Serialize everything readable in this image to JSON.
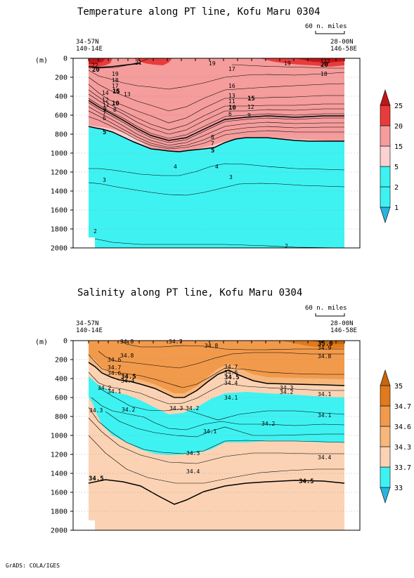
{
  "footer": "GrADS: COLA/IGES",
  "chart_data": [
    {
      "type": "heatmap",
      "title": "Temperature along PT line, Kofu Maru 0304",
      "scale_label": "60 n. miles",
      "start_label": [
        "34-57N",
        "140-14E"
      ],
      "end_label": [
        "28-00N",
        "146-58E"
      ],
      "y_unit": "(m)",
      "y_ticks": [
        "0",
        "200",
        "400",
        "600",
        "800",
        "1000",
        "1200",
        "1400",
        "1600",
        "1800",
        "2000"
      ],
      "ylim": [
        2000,
        0
      ],
      "colorbar": [
        {
          "value": "1",
          "color": "#2ab4e0"
        },
        {
          "value": "2",
          "color": "#3ff2f2"
        },
        {
          "value": "5",
          "color": "#3ff2f2"
        },
        {
          "value": "15",
          "color": "#fbd1d1"
        },
        {
          "value": "20",
          "color": "#f59c9c"
        },
        {
          "value": "25",
          "color": "#e83b3b"
        }
      ],
      "colorbar_top": "#c11616",
      "contour_labels": [
        "22",
        "20",
        "21",
        "19",
        "18",
        "17",
        "16",
        "15",
        "14",
        "13",
        "12",
        "11",
        "10",
        "9",
        "8",
        "7",
        "6",
        "5",
        "4",
        "3",
        "2",
        "19",
        "17",
        "16",
        "15",
        "13",
        "12",
        "11",
        "10",
        "9",
        "8",
        "7",
        "6",
        "5",
        "4",
        "3",
        "19",
        "18",
        "20",
        "22",
        "2"
      ]
    },
    {
      "type": "heatmap",
      "title": "Salinity along PT line, Kofu Maru 0304",
      "scale_label": "60 n. miles",
      "start_label": [
        "34-57N",
        "140-14E"
      ],
      "end_label": [
        "28-00N",
        "146-58E"
      ],
      "y_unit": "(m)",
      "y_ticks": [
        "0",
        "200",
        "400",
        "600",
        "800",
        "1000",
        "1200",
        "1400",
        "1600",
        "1800",
        "2000"
      ],
      "ylim": [
        2000,
        0
      ],
      "colorbar": [
        {
          "value": "33",
          "color": "#2ab4e0"
        },
        {
          "value": "33.7",
          "color": "#3ff2f2"
        },
        {
          "value": "34.3",
          "color": "#fbd3b4"
        },
        {
          "value": "34.6",
          "color": "#f7b77b"
        },
        {
          "value": "34.7",
          "color": "#f29a4b"
        },
        {
          "value": "35",
          "color": "#e07a1c"
        }
      ],
      "colorbar_top": "#c9650b",
      "contour_labels": [
        "34.8",
        "34.7",
        "34.8",
        "34.6",
        "34.8",
        "34.7",
        "34.6",
        "34.5",
        "34.4",
        "34.2",
        "34.1",
        "34.3",
        "34.2",
        "34.3",
        "34.2",
        "34.1",
        "34.2",
        "34.1",
        "34.3",
        "34.4",
        "34.5",
        "34.7",
        "34.6",
        "34.5",
        "34.4",
        "34.1",
        "34.3",
        "34.2",
        "34.1",
        "34.4",
        "35.0",
        "34.9",
        "34.8",
        "34.5"
      ]
    }
  ]
}
